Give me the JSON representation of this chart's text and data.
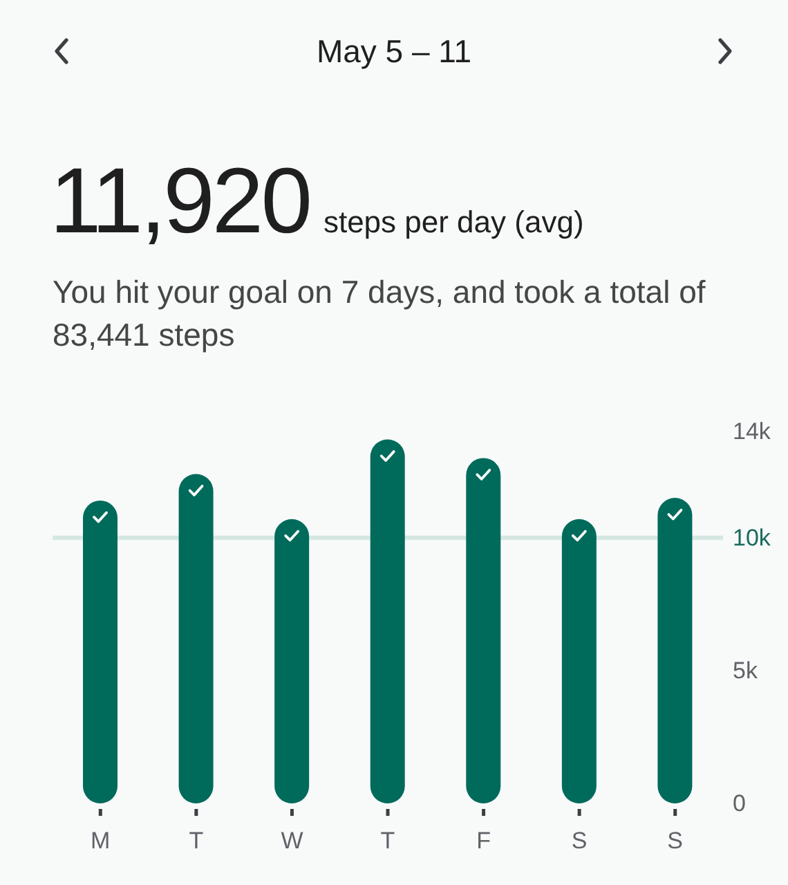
{
  "chart_data": {
    "type": "bar",
    "title": "May 5 – 11",
    "subtitle": "You hit your goal on 7 days, and took a total of 83,441 steps",
    "annotations": [
      "11,920",
      "steps per day (avg)"
    ],
    "categories": [
      "M",
      "T",
      "W",
      "T",
      "F",
      "S",
      "S"
    ],
    "values": [
      11400,
      12400,
      10700,
      13700,
      13000,
      10700,
      11500
    ],
    "color": "#016b5b",
    "ylim": [
      0,
      14000
    ],
    "yticks": [
      0,
      {
        "value": 5000,
        "label": "5k"
      },
      {
        "value": 10000,
        "label": "10k"
      },
      {
        "value": 14000,
        "label": "14k"
      }
    ],
    "ref_lines": [
      {
        "axis": "y",
        "value": 10000,
        "color": "#d4e7e0"
      }
    ]
  }
}
